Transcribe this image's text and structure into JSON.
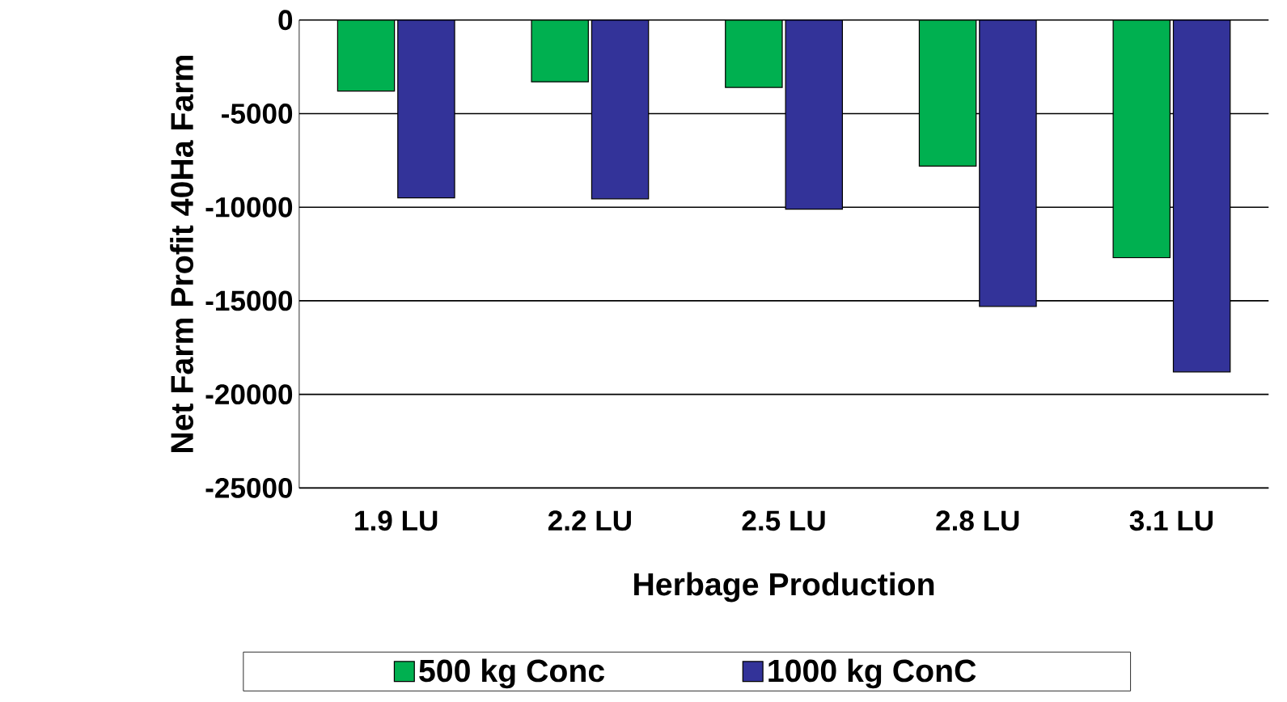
{
  "chart_data": {
    "type": "bar",
    "xlabel": "Herbage Production",
    "ylabel": "Net Farm Profit 40Ha Farm",
    "categories": [
      "1.9 LU",
      "2.2 LU",
      "2.5 LU",
      "2.8 LU",
      "3.1 LU"
    ],
    "series": [
      {
        "name": "500 kg Conc",
        "color": "#00b050",
        "values": [
          -3800,
          -3300,
          -3600,
          -7800,
          -12700
        ]
      },
      {
        "name": "1000 kg ConC",
        "color": "#333399",
        "values": [
          -9500,
          -9550,
          -10100,
          -15300,
          -18800
        ]
      }
    ],
    "ylim": [
      -25000,
      0
    ],
    "yticks": [
      -25000,
      -20000,
      -15000,
      -10000,
      -5000,
      0
    ],
    "grid": "y",
    "legend": "bottom"
  }
}
